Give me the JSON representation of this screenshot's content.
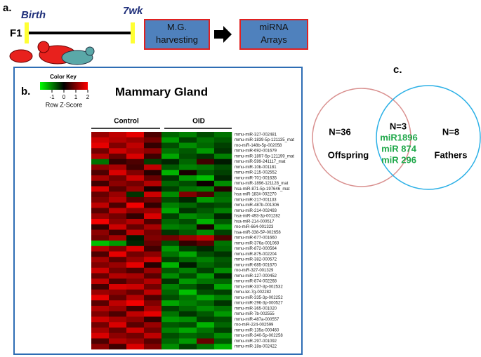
{
  "panel_a": {
    "label": "a.",
    "birth": "Birth",
    "week": "7wk",
    "generation": "F1",
    "boxes": [
      "M.G. harvesting",
      "miRNA Arrays"
    ]
  },
  "panel_b": {
    "label": "b.",
    "title": "Mammary Gland",
    "color_key": {
      "title": "Color Key",
      "ticks": [
        -1,
        0,
        1,
        2
      ],
      "axis_label": "Row Z-Score"
    },
    "groups": [
      "Control",
      "OID"
    ],
    "heatmap": {
      "zlim": [
        -2,
        2
      ],
      "rows": [
        "mmu-miR-327-002481",
        "mmu-miR-1839-5p-121135_mat",
        "rno-miR-148b-5p-002058",
        "mmu-miR-692-001679",
        "mmu-miR-1897-5p-121199_mat",
        "mmu-miR-599-241117_mat",
        "mmu-miR-10b-001181",
        "mmu-miR-215-002552",
        "mmu-miR-701-001635",
        "mmu-miR-1896-121128_mat",
        "hsa-miR-871-5p-197646_mat",
        "hsa-miR-183#-002270",
        "mmu-miR-217-001133",
        "mmu-miR-487b-001306",
        "mmu-miR-214-002493",
        "hsa-miR-493-3p-001282",
        "hsa-miR-214-000517",
        "rno-miR-664-001323",
        "hsa-miR-338-5P-002658",
        "mmu-miR-677-001660",
        "mmu-miR-376a-001069",
        "mmu-miR-872-000564",
        "mmu-miR-875-002204",
        "mmu-miR-382-000572",
        "mmu-miR-685-001670",
        "rno-miR-327-001329",
        "mmu-miR-127-000452",
        "mmu-miR-874-002268",
        "mmu-miR-337-3p-002532",
        "mmu-let-7g-002282",
        "mmu-miR-335-3p-002252",
        "mmu-miR-296-3p-000527",
        "mmu-miR-365-001020",
        "mmu-miR-7b-002555",
        "mmu-miR-487a-000557",
        "rno-miR-224-002599",
        "mmu-miR-135a-000460",
        "mmu-miR-340-5p-002258",
        "mmu-miR-297-001092",
        "mmu-miR-18a-002422"
      ],
      "values": [
        [
          1.2,
          1.5,
          1.8,
          0.6,
          -0.8,
          -1.0,
          -0.6,
          -0.9
        ],
        [
          1.6,
          1.4,
          1.2,
          0.9,
          -1.2,
          -0.5,
          -0.9,
          -0.7
        ],
        [
          1.8,
          1.0,
          1.5,
          0.4,
          -0.6,
          -1.1,
          -0.8,
          -0.5
        ],
        [
          0.9,
          1.6,
          1.3,
          1.1,
          -0.9,
          -0.7,
          -1.2,
          -0.4
        ],
        [
          1.4,
          0.8,
          1.7,
          0.5,
          -1.3,
          -0.6,
          -0.4,
          -1.0
        ],
        [
          -0.9,
          0.4,
          0.6,
          -0.5,
          -0.3,
          -0.8,
          0.5,
          -0.2
        ],
        [
          1.1,
          1.3,
          0.5,
          1.5,
          -0.7,
          -1.0,
          -0.9,
          -0.6
        ],
        [
          0.6,
          1.7,
          1.0,
          0.3,
          -1.4,
          0.2,
          -0.7,
          -0.5
        ],
        [
          1.3,
          0.9,
          1.6,
          0.8,
          -0.4,
          -1.2,
          -1.5,
          -0.3
        ],
        [
          0.5,
          1.1,
          0.9,
          1.4,
          -0.8,
          -0.6,
          0.1,
          -1.1
        ],
        [
          1.7,
          0.7,
          1.2,
          0.2,
          -0.5,
          -0.9,
          -1.0,
          0.3
        ],
        [
          0.8,
          1.2,
          -0.4,
          1.6,
          -1.1,
          1.0,
          0.6,
          -0.8
        ],
        [
          1.0,
          1.4,
          0.7,
          0.9,
          -0.6,
          -0.3,
          -1.2,
          -0.9
        ],
        [
          1.5,
          0.6,
          1.9,
          0.4,
          -1.0,
          -0.8,
          -0.5,
          -0.6
        ],
        [
          0.7,
          1.5,
          1.1,
          1.2,
          -1.3,
          -0.4,
          -0.7,
          -1.0
        ],
        [
          1.2,
          0.9,
          0.4,
          1.7,
          -0.5,
          -1.1,
          -0.9,
          -0.3
        ],
        [
          1.9,
          1.1,
          1.4,
          0.6,
          -0.8,
          -0.6,
          -1.4,
          -0.7
        ],
        [
          0.4,
          1.6,
          0.8,
          1.3,
          -1.0,
          -0.9,
          0.2,
          -1.2
        ],
        [
          1.1,
          0.5,
          1.5,
          0.9,
          -0.4,
          -0.7,
          -1.1,
          -0.5
        ],
        [
          0.9,
          1.3,
          -0.2,
          1.0,
          0.9,
          1.2,
          1.5,
          0.6
        ],
        [
          -1.5,
          -1.2,
          -0.3,
          0.8,
          -0.6,
          0.4,
          0.7,
          -0.9
        ],
        [
          1.4,
          1.0,
          1.7,
          0.5,
          -1.2,
          -0.5,
          -0.3,
          -0.8
        ],
        [
          0.6,
          1.8,
          0.9,
          1.1,
          -0.9,
          -1.3,
          -0.6,
          -0.4
        ],
        [
          1.3,
          0.7,
          1.2,
          1.6,
          -0.5,
          -0.8,
          -1.0,
          -0.7
        ],
        [
          1.0,
          1.2,
          1.8,
          0.3,
          -1.4,
          -0.2,
          -0.8,
          -0.6
        ],
        [
          1.6,
          0.9,
          0.6,
          1.2,
          -0.7,
          -1.0,
          -0.5,
          -1.1
        ],
        [
          0.8,
          1.4,
          1.3,
          0.7,
          -1.1,
          -0.6,
          -1.2,
          -0.3
        ],
        [
          1.5,
          0.6,
          1.0,
          1.4,
          -0.4,
          -1.2,
          -0.9,
          -0.8
        ],
        [
          0.5,
          1.7,
          1.6,
          0.9,
          -1.0,
          -0.7,
          -0.4,
          -1.3
        ],
        [
          1.2,
          1.1,
          0.8,
          1.5,
          -0.8,
          -1.5,
          -0.6,
          -0.5
        ],
        [
          1.8,
          0.8,
          1.4,
          0.6,
          -0.6,
          -0.9,
          -1.3,
          -1.0
        ],
        [
          0.7,
          1.5,
          1.9,
          1.0,
          -1.3,
          -1.0,
          -0.8,
          -0.4
        ],
        [
          1.4,
          1.2,
          0.5,
          1.3,
          -0.5,
          -0.8,
          -1.1,
          -0.9
        ],
        [
          1.0,
          0.6,
          1.5,
          1.8,
          -0.9,
          -0.4,
          -0.7,
          -1.2
        ],
        [
          1.6,
          1.3,
          1.1,
          0.4,
          -1.2,
          -1.1,
          -0.5,
          -0.6
        ],
        [
          0.9,
          1.7,
          0.7,
          1.2,
          -0.7,
          -0.6,
          -1.4,
          -0.8
        ],
        [
          1.3,
          0.8,
          1.6,
          0.9,
          -1.0,
          -1.3,
          -0.9,
          -0.5
        ],
        [
          1.7,
          1.1,
          0.9,
          1.5,
          -0.6,
          -0.8,
          -0.7,
          -1.1
        ],
        [
          0.6,
          1.4,
          1.2,
          0.7,
          -0.8,
          -1.2,
          0.8,
          -0.7
        ],
        [
          1.1,
          0.5,
          1.7,
          1.0,
          -1.1,
          -0.5,
          -0.9,
          -1.4
        ]
      ]
    }
  },
  "panel_c": {
    "label": "c.",
    "left": {
      "n": "N=36",
      "name": "Offspring"
    },
    "overlap": {
      "n": "N=3",
      "mirnas": [
        "miR1896",
        "miR 874",
        "miR 296"
      ]
    },
    "right": {
      "n": "N=8",
      "name": "Fathers"
    }
  }
}
